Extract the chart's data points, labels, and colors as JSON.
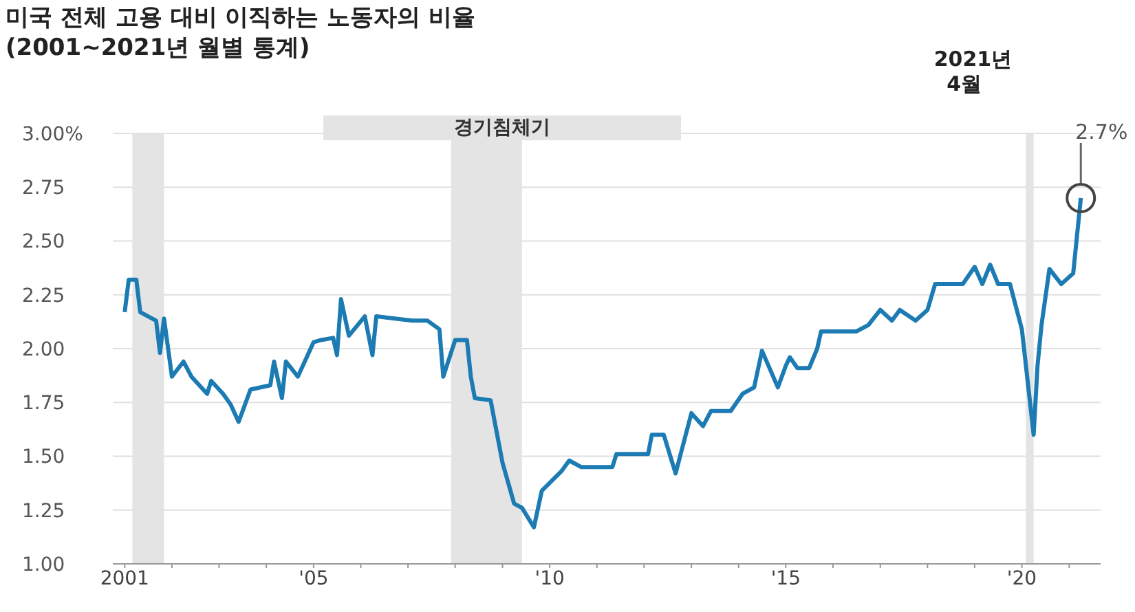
{
  "chart_data": {
    "type": "line",
    "title": "미국 전체 고용 대비 이직하는 노동자의 비율",
    "subtitle": "(2001~2021년 월별 통계)",
    "x": [
      "2001-01",
      "2001-02",
      "2001-04",
      "2001-05",
      "2001-09",
      "2001-10",
      "2001-11",
      "2002-01",
      "2002-04",
      "2002-06",
      "2002-10",
      "2002-11",
      "2003-02",
      "2003-04",
      "2003-06",
      "2003-09",
      "2004-02",
      "2004-03",
      "2004-05",
      "2004-06",
      "2004-09",
      "2005-01",
      "2005-03",
      "2005-06",
      "2005-07",
      "2005-08",
      "2005-10",
      "2006-02",
      "2006-04",
      "2006-05",
      "2007-02",
      "2007-06",
      "2007-09",
      "2007-10",
      "2008-01",
      "2008-04",
      "2008-05",
      "2008-06",
      "2008-10",
      "2009-01",
      "2009-04",
      "2009-06",
      "2009-09",
      "2009-11",
      "2010-04",
      "2010-06",
      "2010-09",
      "2011-05",
      "2011-06",
      "2012-02",
      "2012-03",
      "2012-06",
      "2012-09",
      "2012-10",
      "2013-01",
      "2013-04",
      "2013-06",
      "2013-11",
      "2014-02",
      "2014-05",
      "2014-07",
      "2014-11",
      "2015-01",
      "2015-02",
      "2015-04",
      "2015-07",
      "2015-09",
      "2015-10",
      "2016-02",
      "2016-07",
      "2016-10",
      "2017-01",
      "2017-04",
      "2017-06",
      "2017-10",
      "2018-01",
      "2018-03",
      "2018-10",
      "2019-01",
      "2019-03",
      "2019-05",
      "2019-07",
      "2019-10",
      "2020-01",
      "2020-04",
      "2020-05",
      "2020-06",
      "2020-08",
      "2020-11",
      "2021-02",
      "2021-04"
    ],
    "series": [
      {
        "color": "#1d7bb3",
        "values": [
          2.17,
          2.32,
          2.32,
          2.17,
          2.13,
          1.98,
          2.14,
          1.87,
          1.94,
          1.87,
          1.79,
          1.85,
          1.79,
          1.74,
          1.66,
          1.81,
          1.83,
          1.94,
          1.77,
          1.94,
          1.87,
          2.03,
          2.04,
          2.05,
          1.97,
          2.23,
          2.06,
          2.15,
          1.97,
          2.15,
          2.13,
          2.13,
          2.09,
          1.87,
          2.04,
          2.04,
          1.87,
          1.77,
          1.76,
          1.47,
          1.28,
          1.26,
          1.17,
          1.34,
          1.43,
          1.48,
          1.45,
          1.45,
          1.51,
          1.51,
          1.6,
          1.6,
          1.42,
          1.49,
          1.7,
          1.64,
          1.71,
          1.71,
          1.79,
          1.82,
          1.99,
          1.82,
          1.92,
          1.96,
          1.91,
          1.91,
          2.0,
          2.08,
          2.08,
          2.08,
          2.11,
          2.18,
          2.13,
          2.18,
          2.13,
          2.18,
          2.3,
          2.3,
          2.38,
          2.3,
          2.39,
          2.3,
          2.3,
          2.09,
          1.6,
          1.92,
          2.11,
          2.37,
          2.3,
          2.35,
          2.7
        ]
      }
    ],
    "xlim": [
      "2000-10",
      "2021-09"
    ],
    "xticks": [
      {
        "value": "2001",
        "label": "2001"
      },
      {
        "value": "2002",
        "label": null
      },
      {
        "value": "2003",
        "label": null
      },
      {
        "value": "2004",
        "label": null
      },
      {
        "value": "2005",
        "label": "'05"
      },
      {
        "value": "2006",
        "label": null
      },
      {
        "value": "2007",
        "label": null
      },
      {
        "value": "2008",
        "label": null
      },
      {
        "value": "2009",
        "label": null
      },
      {
        "value": "2010",
        "label": "'10"
      },
      {
        "value": "2011",
        "label": null
      },
      {
        "value": "2012",
        "label": null
      },
      {
        "value": "2013",
        "label": null
      },
      {
        "value": "2014",
        "label": null
      },
      {
        "value": "2015",
        "label": "'15"
      },
      {
        "value": "2016",
        "label": null
      },
      {
        "value": "2017",
        "label": null
      },
      {
        "value": "2018",
        "label": null
      },
      {
        "value": "2019",
        "label": null
      },
      {
        "value": "2020",
        "label": "'20"
      },
      {
        "value": "2021",
        "label": null
      }
    ],
    "ylim": [
      1,
      3
    ],
    "yticks": [
      {
        "value": 1,
        "label": "1.00"
      },
      {
        "value": 1.25,
        "label": "1.25"
      },
      {
        "value": 1.5,
        "label": "1.50"
      },
      {
        "value": 1.75,
        "label": "1.75"
      },
      {
        "value": 2,
        "label": "2.00"
      },
      {
        "value": 2.25,
        "label": "2.25"
      },
      {
        "value": 2.5,
        "label": "2.50"
      },
      {
        "value": 2.75,
        "label": "2.75"
      },
      {
        "value": 3,
        "label": "3.00%"
      }
    ],
    "grid": "y",
    "bands": [
      {
        "axis": "x",
        "from": "2001-03",
        "to": "2001-11",
        "color": "#e4e4e4"
      },
      {
        "axis": "x",
        "from": "2007-12",
        "to": "2009-06",
        "color": "#e4e4e4",
        "label": "경기침체기"
      },
      {
        "axis": "x",
        "from": "2020-02",
        "to": "2020-04",
        "color": "#e4e4e4"
      }
    ],
    "annotations": [
      {
        "text": "2.7%",
        "x": "2021-04",
        "y": 2.7
      },
      "2021년 4월"
    ]
  }
}
